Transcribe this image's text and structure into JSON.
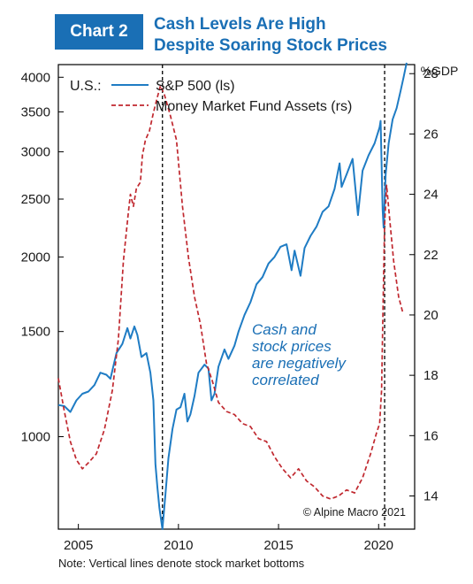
{
  "header": {
    "chart_number": "Chart 2",
    "title_line1": "Cash Levels Are High",
    "title_line2": "Despite Soaring Stock Prices"
  },
  "note": "Note: Vertical lines denote stock market bottoms",
  "colors": {
    "accent": "#1a6fb5",
    "spx": "#1f7cc4",
    "mmf": "#c0282f"
  },
  "chart_data": {
    "type": "line",
    "region_label": "U.S.:",
    "right_axis_unit": "%GDP",
    "annotation_lines": [
      "Cash and",
      "stock prices",
      "are negatively",
      "correlated"
    ],
    "copyright": "© Alpine Macro 2021",
    "x": {
      "range": [
        2004,
        2021.8
      ],
      "ticks": [
        2005,
        2010,
        2015,
        2020
      ],
      "tick_labels": [
        "2005",
        "2010",
        "2015",
        "2020"
      ]
    },
    "y_left": {
      "scale": "log",
      "range": [
        700,
        4200
      ],
      "ticks": [
        1000,
        1500,
        2000,
        2500,
        3000,
        3500,
        4000
      ],
      "tick_labels": [
        "1000",
        "1500",
        "2000",
        "2500",
        "3000",
        "3500",
        "4000"
      ]
    },
    "y_right": {
      "scale": "linear",
      "range": [
        12.9,
        28.3
      ],
      "ticks": [
        14,
        16,
        18,
        20,
        22,
        24,
        26,
        28
      ],
      "tick_labels": [
        "14",
        "16",
        "18",
        "20",
        "22",
        "24",
        "26",
        "28"
      ]
    },
    "vlines": [
      2009.2,
      2020.3
    ],
    "series": [
      {
        "name": "S&P 500 (ls)",
        "axis": "left",
        "style": "solid",
        "points": [
          [
            2004.0,
            1130
          ],
          [
            2004.3,
            1125
          ],
          [
            2004.6,
            1100
          ],
          [
            2004.9,
            1150
          ],
          [
            2005.2,
            1180
          ],
          [
            2005.5,
            1190
          ],
          [
            2005.8,
            1220
          ],
          [
            2006.1,
            1280
          ],
          [
            2006.4,
            1270
          ],
          [
            2006.6,
            1250
          ],
          [
            2006.9,
            1380
          ],
          [
            2007.2,
            1430
          ],
          [
            2007.45,
            1520
          ],
          [
            2007.6,
            1460
          ],
          [
            2007.8,
            1530
          ],
          [
            2007.95,
            1480
          ],
          [
            2008.15,
            1360
          ],
          [
            2008.4,
            1380
          ],
          [
            2008.6,
            1280
          ],
          [
            2008.75,
            1150
          ],
          [
            2008.85,
            900
          ],
          [
            2008.95,
            820
          ],
          [
            2009.05,
            760
          ],
          [
            2009.2,
            700
          ],
          [
            2009.35,
            800
          ],
          [
            2009.5,
            920
          ],
          [
            2009.7,
            1030
          ],
          [
            2009.9,
            1110
          ],
          [
            2010.1,
            1120
          ],
          [
            2010.3,
            1180
          ],
          [
            2010.45,
            1060
          ],
          [
            2010.6,
            1090
          ],
          [
            2010.8,
            1170
          ],
          [
            2011.0,
            1280
          ],
          [
            2011.3,
            1320
          ],
          [
            2011.5,
            1300
          ],
          [
            2011.65,
            1150
          ],
          [
            2011.8,
            1180
          ],
          [
            2012.0,
            1310
          ],
          [
            2012.3,
            1400
          ],
          [
            2012.5,
            1350
          ],
          [
            2012.8,
            1420
          ],
          [
            2013.0,
            1500
          ],
          [
            2013.3,
            1600
          ],
          [
            2013.6,
            1680
          ],
          [
            2013.9,
            1800
          ],
          [
            2014.2,
            1850
          ],
          [
            2014.5,
            1950
          ],
          [
            2014.8,
            2000
          ],
          [
            2015.1,
            2080
          ],
          [
            2015.4,
            2100
          ],
          [
            2015.65,
            1900
          ],
          [
            2015.8,
            2050
          ],
          [
            2016.1,
            1860
          ],
          [
            2016.3,
            2070
          ],
          [
            2016.6,
            2170
          ],
          [
            2016.9,
            2250
          ],
          [
            2017.2,
            2380
          ],
          [
            2017.5,
            2430
          ],
          [
            2017.8,
            2600
          ],
          [
            2018.05,
            2870
          ],
          [
            2018.15,
            2620
          ],
          [
            2018.4,
            2750
          ],
          [
            2018.7,
            2920
          ],
          [
            2018.97,
            2350
          ],
          [
            2019.2,
            2790
          ],
          [
            2019.5,
            2960
          ],
          [
            2019.8,
            3100
          ],
          [
            2020.05,
            3300
          ],
          [
            2020.1,
            3380
          ],
          [
            2020.2,
            2400
          ],
          [
            2020.25,
            2240
          ],
          [
            2020.35,
            2750
          ],
          [
            2020.5,
            3100
          ],
          [
            2020.7,
            3400
          ],
          [
            2020.9,
            3550
          ],
          [
            2021.1,
            3800
          ],
          [
            2021.25,
            4000
          ],
          [
            2021.4,
            4230
          ]
        ]
      },
      {
        "name": "Money Market Fund Assets (rs)",
        "axis": "right",
        "style": "dashed",
        "points": [
          [
            2004.0,
            17.9
          ],
          [
            2004.3,
            16.8
          ],
          [
            2004.6,
            15.8
          ],
          [
            2004.9,
            15.2
          ],
          [
            2005.2,
            14.9
          ],
          [
            2005.5,
            15.1
          ],
          [
            2005.9,
            15.4
          ],
          [
            2006.3,
            16.2
          ],
          [
            2006.7,
            17.5
          ],
          [
            2007.0,
            19.2
          ],
          [
            2007.25,
            21.8
          ],
          [
            2007.5,
            23.4
          ],
          [
            2007.6,
            24.0
          ],
          [
            2007.75,
            23.6
          ],
          [
            2007.9,
            24.2
          ],
          [
            2008.1,
            24.4
          ],
          [
            2008.2,
            25.3
          ],
          [
            2008.35,
            25.8
          ],
          [
            2008.55,
            26.1
          ],
          [
            2008.75,
            26.7
          ],
          [
            2008.9,
            27.1
          ],
          [
            2009.1,
            27.6
          ],
          [
            2009.3,
            27.3
          ],
          [
            2009.6,
            26.6
          ],
          [
            2009.9,
            25.8
          ],
          [
            2010.2,
            23.6
          ],
          [
            2010.5,
            21.9
          ],
          [
            2010.8,
            20.6
          ],
          [
            2011.1,
            19.7
          ],
          [
            2011.4,
            18.4
          ],
          [
            2011.7,
            17.8
          ],
          [
            2012.0,
            17.1
          ],
          [
            2012.4,
            16.8
          ],
          [
            2012.8,
            16.7
          ],
          [
            2013.2,
            16.4
          ],
          [
            2013.6,
            16.3
          ],
          [
            2014.0,
            15.9
          ],
          [
            2014.4,
            15.8
          ],
          [
            2014.8,
            15.3
          ],
          [
            2015.2,
            14.9
          ],
          [
            2015.6,
            14.6
          ],
          [
            2016.0,
            14.9
          ],
          [
            2016.4,
            14.5
          ],
          [
            2016.8,
            14.3
          ],
          [
            2017.2,
            14.0
          ],
          [
            2017.6,
            13.9
          ],
          [
            2018.0,
            14.0
          ],
          [
            2018.4,
            14.2
          ],
          [
            2018.8,
            14.1
          ],
          [
            2019.2,
            14.6
          ],
          [
            2019.6,
            15.4
          ],
          [
            2019.9,
            16.1
          ],
          [
            2020.05,
            16.4
          ],
          [
            2020.15,
            17.5
          ],
          [
            2020.22,
            20.2
          ],
          [
            2020.3,
            23.0
          ],
          [
            2020.4,
            24.3
          ],
          [
            2020.55,
            23.2
          ],
          [
            2020.75,
            21.8
          ],
          [
            2021.0,
            20.6
          ],
          [
            2021.2,
            20.1
          ]
        ]
      }
    ]
  }
}
